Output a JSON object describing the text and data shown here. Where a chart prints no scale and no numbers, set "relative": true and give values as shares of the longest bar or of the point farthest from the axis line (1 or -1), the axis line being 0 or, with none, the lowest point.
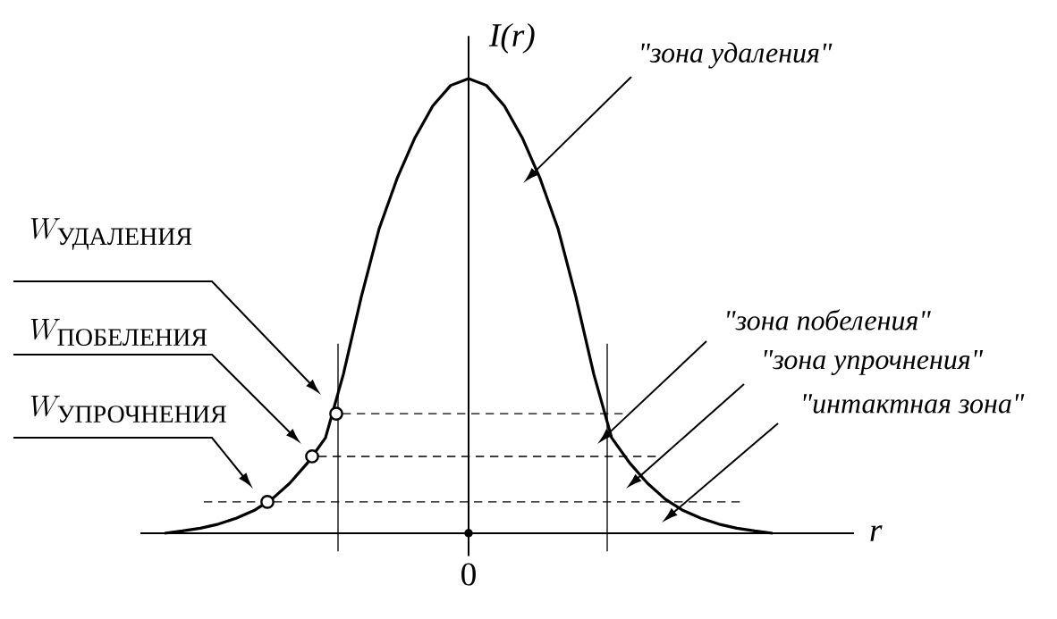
{
  "chart_data": {
    "type": "line",
    "relative": true,
    "xlabel": "r",
    "ylabel": "I(r)",
    "marker": "none",
    "line_style": "solid",
    "categories": [
      null,
      null,
      null,
      null,
      null,
      null,
      null,
      null,
      null,
      null,
      null,
      null,
      null,
      null,
      null,
      null,
      null,
      null,
      null,
      null,
      null,
      null,
      null,
      null,
      null,
      null,
      null,
      null,
      null,
      null,
      null,
      null,
      null,
      null,
      null
    ],
    "series": [
      {
        "color": "#000000",
        "values": [
          0.0,
          0.005,
          0.011,
          0.02,
          0.033,
          0.05,
          0.075,
          0.11,
          0.155,
          0.21,
          0.35,
          0.52,
          0.67,
          0.78,
          0.87,
          0.94,
          0.985,
          1.0,
          0.985,
          0.94,
          0.87,
          0.78,
          0.67,
          0.52,
          0.35,
          0.21,
          0.155,
          0.11,
          0.075,
          0.05,
          0.033,
          0.02,
          0.011,
          0.005,
          0.0
        ]
      }
    ],
    "ref_lines": [
      {
        "axis": "y",
        "value": 0.263,
        "line_style": "dashed"
      },
      {
        "axis": "y",
        "value": 0.169,
        "line_style": "dashed"
      },
      {
        "axis": "y",
        "value": 0.069,
        "line_style": "dashed"
      }
    ],
    "annotations": [
      "0",
      "\"зона удаления\"",
      "\"зона побеления\"",
      "\"зона упрочнения\"",
      "\"интактная зона\"",
      "W_{\\text{УДАЛЕНИЯ}}",
      "W_{\\text{ПОБЕЛЕНИЯ}}",
      "W_{\\text{УПРОЧНЕНИЯ}}"
    ]
  }
}
